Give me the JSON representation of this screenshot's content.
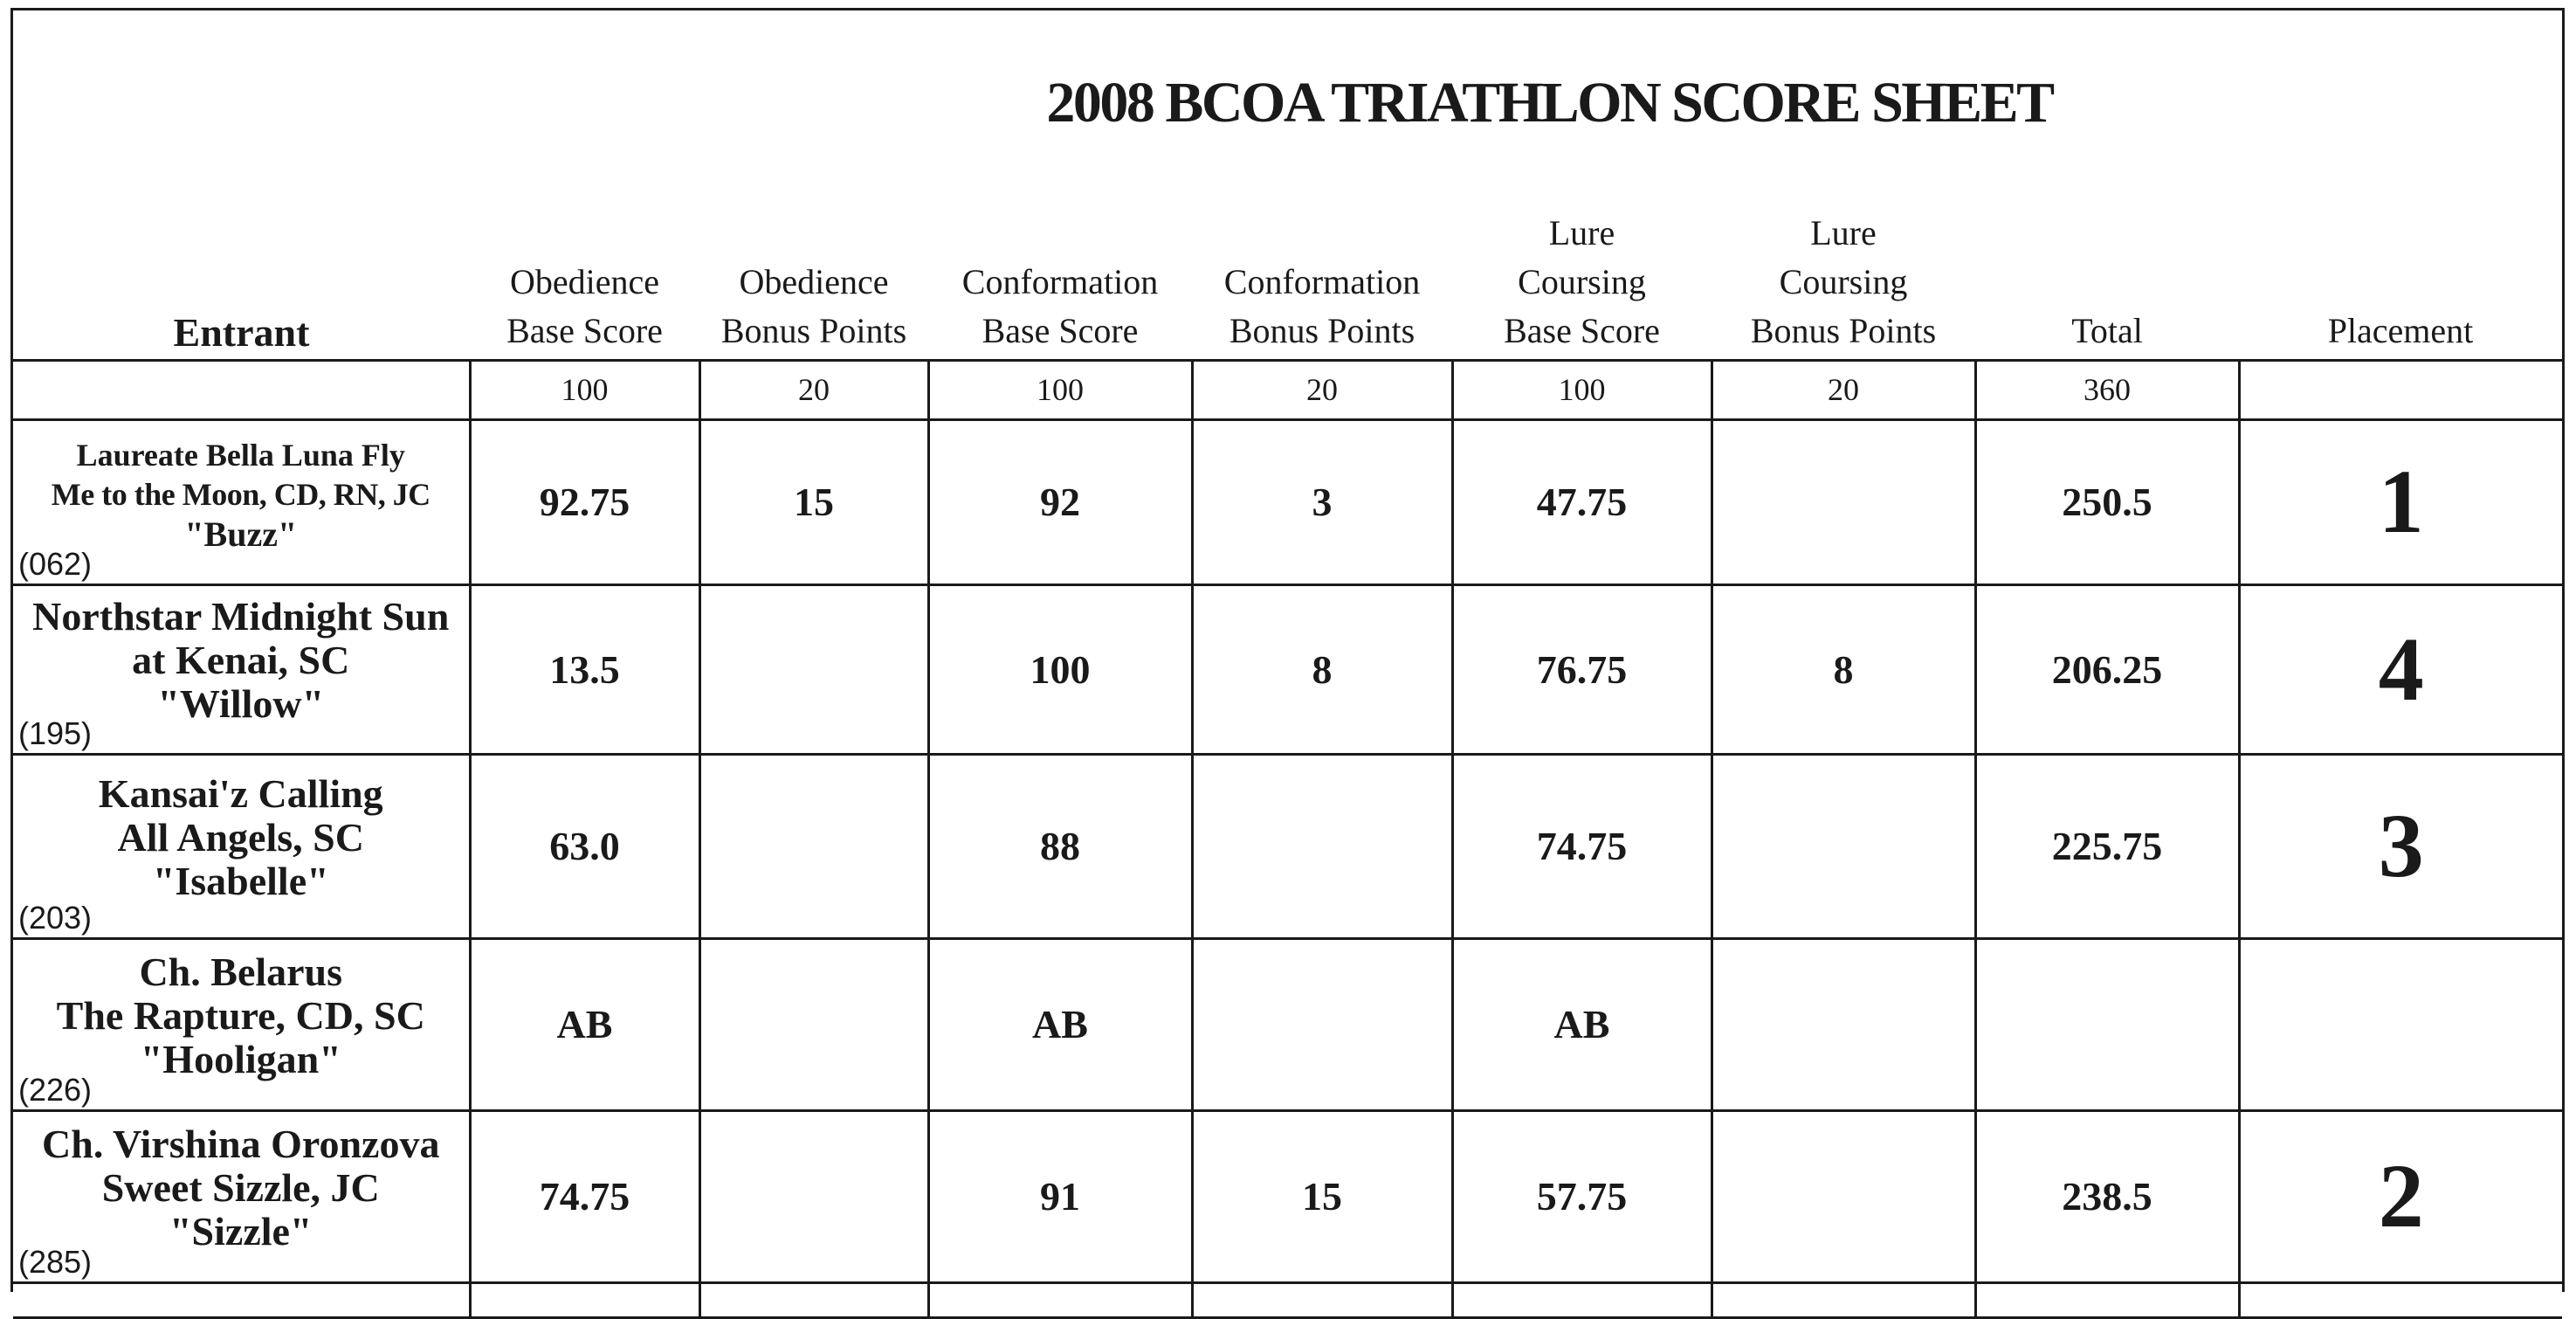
{
  "title": "2008 BCOA TRIATHLON SCORE SHEET",
  "columns": [
    {
      "lines": [
        "Entrant"
      ]
    },
    {
      "lines": [
        "Obedience",
        "Base Score"
      ]
    },
    {
      "lines": [
        "Obedience",
        "Bonus  Points"
      ]
    },
    {
      "lines": [
        "Conformation",
        "Base Score"
      ]
    },
    {
      "lines": [
        "Conformation",
        "Bonus  Points"
      ]
    },
    {
      "lines": [
        "Lure",
        "Coursing",
        "Base Score"
      ]
    },
    {
      "lines": [
        "Lure",
        "Coursing",
        "Bonus  Points"
      ]
    },
    {
      "lines": [
        "Total"
      ]
    },
    {
      "lines": [
        "Placement"
      ]
    }
  ],
  "max_points": [
    "",
    "100",
    "20",
    "100",
    "20",
    "100",
    "20",
    "360",
    ""
  ],
  "entries": [
    {
      "name_lines": [
        "Laureate Bella Luna Fly",
        "Me to the Moon, CD, RN, JC",
        "\"Buzz\""
      ],
      "entry_no": "(062)",
      "scores": [
        "92.75",
        "15",
        "92",
        "3",
        "47.75",
        "",
        "250.5"
      ],
      "placement": "1"
    },
    {
      "name_lines": [
        "Northstar Midnight Sun",
        "at Kenai, SC",
        "\"Willow\""
      ],
      "entry_no": "(195)",
      "scores": [
        "13.5",
        "",
        "100",
        "8",
        "76.75",
        "8",
        "206.25"
      ],
      "placement": "4"
    },
    {
      "name_lines": [
        "Kansai'z Calling",
        "All Angels, SC",
        "\"Isabelle\""
      ],
      "entry_no": "(203)",
      "scores": [
        "63.0",
        "",
        "88",
        "",
        "74.75",
        "",
        "225.75"
      ],
      "placement": "3"
    },
    {
      "name_lines": [
        "Ch. Belarus",
        "The Rapture, CD, SC",
        "\"Hooligan\""
      ],
      "entry_no": "(226)",
      "scores": [
        "AB",
        "",
        "AB",
        "",
        "AB",
        "",
        ""
      ],
      "placement": ""
    },
    {
      "name_lines": [
        "Ch. Virshina Oronzova",
        "Sweet  Sizzle,  JC",
        "\"Sizzle\""
      ],
      "entry_no": "(285)",
      "scores": [
        "74.75",
        "",
        "91",
        "15",
        "57.75",
        "",
        "238.5"
      ],
      "placement": "2"
    }
  ]
}
